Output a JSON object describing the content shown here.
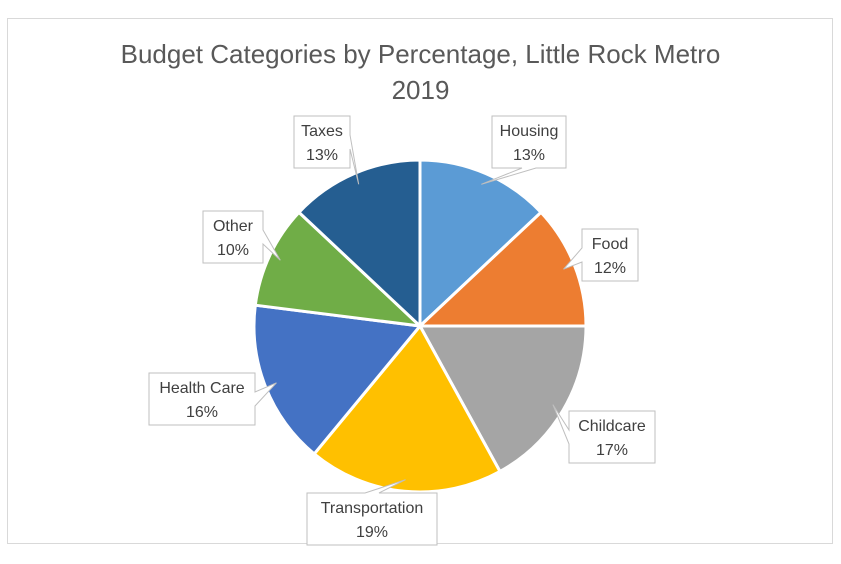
{
  "chart_data": {
    "type": "pie",
    "title": "Budget Categories by Percentage, Little Rock Metro\n2019",
    "categories": [
      "Housing",
      "Food",
      "Childcare",
      "Transportation",
      "Health Care",
      "Other",
      "Taxes"
    ],
    "values": [
      13,
      12,
      17,
      19,
      16,
      10,
      13
    ],
    "value_labels": [
      "13%",
      "12%",
      "17%",
      "19%",
      "16%",
      "10%",
      "13%"
    ],
    "colors": [
      "#5b9bd5",
      "#ed7d31",
      "#a5a5a5",
      "#ffc000",
      "#4472c4",
      "#70ad47",
      "#255e91"
    ],
    "legend": "none",
    "data_label_style": "callout"
  }
}
